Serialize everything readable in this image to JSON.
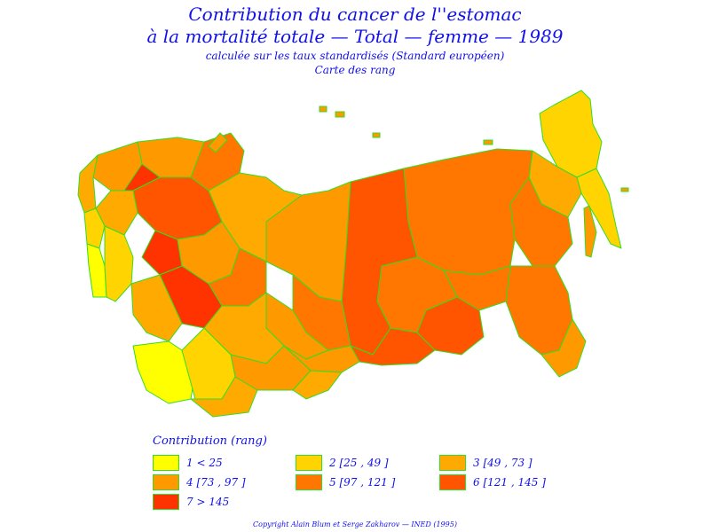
{
  "title": {
    "line1": "Contribution du cancer de l''estomac",
    "line2": "à la mortalité totale  —  Total  —  femme  —  1989",
    "line3": "calculée sur les taux standardisés (Standard européen)",
    "line4": "Carte des rang"
  },
  "legend": {
    "title": "Contribution  (rang)",
    "items": [
      {
        "label": "1  <  25",
        "color": "#ffff00"
      },
      {
        "label": "2  [25  ,  49  ]",
        "color": "#ffd400"
      },
      {
        "label": "3  [49  ,  73  ]",
        "color": "#ffaa00"
      },
      {
        "label": "4  [73  ,  97  ]",
        "color": "#ff9900"
      },
      {
        "label": "5  [97  ,  121  ]",
        "color": "#ff7700"
      },
      {
        "label": "6  [121  ,  145  ]",
        "color": "#ff5500"
      },
      {
        "label": "7  >  145",
        "color": "#ff3300"
      }
    ]
  },
  "border_color": "#33dd22",
  "text_color": "#1010ee",
  "copyright": "Copyright  Alain  Blum  et  Serge  Zakharov  —  INED  (1995)"
}
